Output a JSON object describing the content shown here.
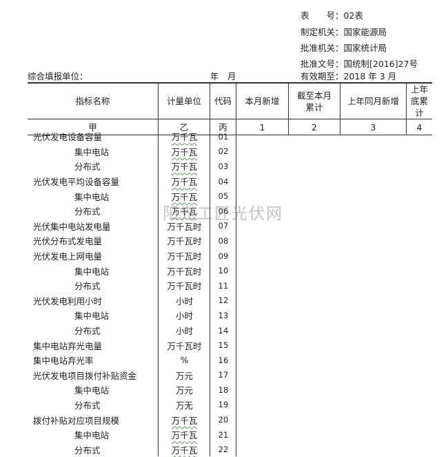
{
  "meta": {
    "form_no": "表　　号：02表",
    "issuer": "制定机关：国家能源局",
    "approver": "批准机关：国家统计局",
    "approval_no": "批准文号：国统制[2016]27号",
    "valid_until": "有效期至：2018 年 3 月"
  },
  "filler_label": "综合填报单位：",
  "year_month": "年　月",
  "header": [
    "指标名称",
    "计量单位",
    "代码",
    "本月新增",
    "截至本月累计",
    "上年同月新增",
    "上年底累计"
  ],
  "index_row": [
    "甲",
    "乙",
    "丙",
    "1",
    "2",
    "3",
    "4"
  ],
  "rows": [
    {
      "name": "光伏发电设备容量",
      "unit": "万千瓦",
      "code": "01",
      "sub": false,
      "wavy": true
    },
    {
      "name": "集中电站",
      "unit": "万千瓦",
      "code": "02",
      "sub": true,
      "wavy": true
    },
    {
      "name": "分布式",
      "unit": "万千瓦",
      "code": "03",
      "sub": true,
      "wavy": true
    },
    {
      "name": "光伏发电平均设备容量",
      "unit": "万千瓦",
      "code": "04",
      "sub": false,
      "wavy": true
    },
    {
      "name": "集中电站",
      "unit": "万千瓦",
      "code": "05",
      "sub": true,
      "wavy": true
    },
    {
      "name": "分布式",
      "unit": "万千瓦",
      "code": "06",
      "sub": true,
      "wavy": true
    },
    {
      "name": "光伏集中电站发电量",
      "unit": "万千瓦时",
      "code": "07",
      "sub": false,
      "wavy": false
    },
    {
      "name": "光伏分布式发电量",
      "unit": "万千瓦时",
      "code": "08",
      "sub": false,
      "wavy": false
    },
    {
      "name": "光伏发电上网电量",
      "unit": "万千瓦时",
      "code": "09",
      "sub": false,
      "wavy": false
    },
    {
      "name": "集中电站",
      "unit": "万千瓦时",
      "code": "10",
      "sub": true,
      "wavy": false
    },
    {
      "name": "分布式",
      "unit": "万千瓦时",
      "code": "11",
      "sub": true,
      "wavy": false
    },
    {
      "name": "光伏发电利用小时",
      "unit": "小时",
      "code": "12",
      "sub": false,
      "wavy": false
    },
    {
      "name": "集中电站",
      "unit": "小时",
      "code": "13",
      "sub": true,
      "wavy": false
    },
    {
      "name": "分布式",
      "unit": "小时",
      "code": "14",
      "sub": true,
      "wavy": false
    },
    {
      "name": "集中电站弃光电量",
      "unit": "万千瓦时",
      "code": "15",
      "sub": false,
      "wavy": false
    },
    {
      "name": "集中电站弃光率",
      "unit": "%",
      "code": "16",
      "sub": false,
      "wavy": false
    },
    {
      "name": "光伏发电项目拨付补贴资金",
      "unit": "万元",
      "code": "17",
      "sub": false,
      "wavy": false
    },
    {
      "name": "集中电站",
      "unit": "万元",
      "code": "18",
      "sub": true,
      "wavy": false
    },
    {
      "name": "分布式",
      "unit": "万无",
      "code": "19",
      "sub": true,
      "wavy": false
    },
    {
      "name": "拨付补贴对应项目规模",
      "unit": "万千瓦",
      "code": "20",
      "sub": false,
      "wavy": true
    },
    {
      "name": "集中电站",
      "unit": "万千瓦",
      "code": "21",
      "sub": true,
      "wavy": true
    },
    {
      "name": "分布式",
      "unit": "万千瓦",
      "code": "22",
      "sub": true,
      "wavy": true
    }
  ],
  "watermark": "阳光工匠光伏网"
}
